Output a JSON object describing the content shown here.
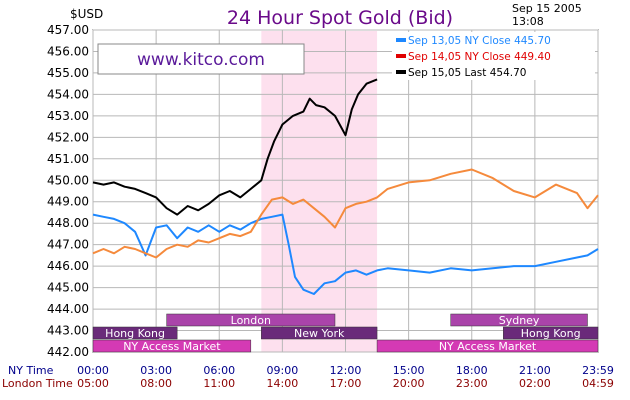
{
  "header": {
    "currency": "$USD",
    "title": "24 Hour Spot Gold (Bid)",
    "date": "Sep 15 2005",
    "time": "13:08",
    "watermark": "www.kitco.com"
  },
  "legend": [
    {
      "label": "Sep 13,05 NY Close 445.70",
      "color": "#1e88ff"
    },
    {
      "label": "Sep 14,05 NY Close 449.40",
      "color": "#e00000"
    },
    {
      "label": "Sep 15,05 Last 454.70",
      "color": "#000000"
    }
  ],
  "row_labels": {
    "ny": "NY Time",
    "london": "London Time"
  },
  "markets": [
    {
      "name": "London",
      "color": "#aa44aa",
      "row": 0,
      "start_ny": 3.5,
      "end_ny": 11.5
    },
    {
      "name": "Sydney",
      "color": "#aa44aa",
      "row": 0,
      "start_ny": 17.0,
      "end_ny": 23.5
    },
    {
      "name": "Hong Kong",
      "color": "#6a2a7a",
      "row": 1,
      "start_ny": 0.0,
      "end_ny": 4.0
    },
    {
      "name": "New York",
      "color": "#6a2a7a",
      "row": 1,
      "start_ny": 8.0,
      "end_ny": 13.5
    },
    {
      "name": "Hong Kong",
      "color": "#6a2a7a",
      "row": 1,
      "start_ny": 19.5,
      "end_ny": 24.0
    },
    {
      "name": "NY Access Market",
      "color": "#d43ab4",
      "row": 2,
      "start_ny": 0.0,
      "end_ny": 7.5
    },
    {
      "name": "NY Access Market",
      "color": "#d43ab4",
      "row": 2,
      "start_ny": 13.5,
      "end_ny": 24.0
    }
  ],
  "chart_data": {
    "type": "line",
    "title": "24 Hour Spot Gold (Bid)",
    "ylabel": "$USD",
    "xlim": [
      0,
      24
    ],
    "ylim": [
      442,
      457
    ],
    "yticks": [
      "457.00",
      "456.00",
      "455.00",
      "454.00",
      "453.00",
      "452.00",
      "451.00",
      "450.00",
      "449.00",
      "448.00",
      "447.00",
      "446.00",
      "445.00",
      "444.00",
      "443.00",
      "442.00"
    ],
    "x_ticks_ny": [
      "00:00",
      "03:00",
      "06:00",
      "09:00",
      "12:00",
      "15:00",
      "18:00",
      "21:00",
      "23:59"
    ],
    "x_ticks_london": [
      "05:00",
      "08:00",
      "11:00",
      "14:00",
      "17:00",
      "20:00",
      "23:00",
      "02:00",
      "04:59"
    ],
    "highlight": {
      "start_ny": 8.0,
      "end_ny": 13.5
    },
    "grid": true,
    "legend_position": "top-right",
    "series": [
      {
        "name": "Sep 13,05 NY Close 445.70",
        "color": "#1e88ff",
        "x": [
          0,
          0.5,
          1,
          1.5,
          2,
          2.5,
          3,
          3.5,
          4,
          4.5,
          5,
          5.5,
          6,
          6.5,
          7,
          7.5,
          8,
          8.5,
          9,
          9.3,
          9.6,
          10,
          10.5,
          11,
          11.5,
          12,
          12.5,
          13,
          13.5,
          14,
          15,
          16,
          17,
          18,
          19,
          20,
          21,
          22,
          23,
          23.5,
          24
        ],
        "y": [
          448.4,
          448.3,
          448.2,
          448.0,
          447.6,
          446.5,
          447.8,
          447.9,
          447.3,
          447.8,
          447.6,
          447.9,
          447.6,
          447.9,
          447.7,
          448.0,
          448.2,
          448.3,
          448.4,
          447.0,
          445.5,
          444.9,
          444.7,
          445.2,
          445.3,
          445.7,
          445.8,
          445.6,
          445.8,
          445.9,
          445.8,
          445.7,
          445.9,
          445.8,
          445.9,
          446.0,
          446.0,
          446.2,
          446.4,
          446.5,
          446.8
        ]
      },
      {
        "name": "Sep 14,05 NY Close 449.40",
        "color": "#f58a3c",
        "x": [
          0,
          0.5,
          1,
          1.5,
          2,
          2.5,
          3,
          3.5,
          4,
          4.5,
          5,
          5.5,
          6,
          6.5,
          7,
          7.5,
          8,
          8.5,
          9,
          9.5,
          10,
          10.5,
          11,
          11.5,
          12,
          12.5,
          13,
          13.5,
          14,
          15,
          16,
          17,
          18,
          19,
          20,
          21,
          22,
          23,
          23.5,
          24
        ],
        "y": [
          446.6,
          446.8,
          446.6,
          446.9,
          446.8,
          446.6,
          446.4,
          446.8,
          447.0,
          446.9,
          447.2,
          447.1,
          447.3,
          447.5,
          447.4,
          447.6,
          448.4,
          449.1,
          449.2,
          448.9,
          449.1,
          448.7,
          448.3,
          447.8,
          448.7,
          448.9,
          449.0,
          449.2,
          449.6,
          449.9,
          450.0,
          450.3,
          450.5,
          450.1,
          449.5,
          449.2,
          449.8,
          449.4,
          448.7,
          449.3
        ]
      },
      {
        "name": "Sep 15,05 Last 454.70",
        "color": "#000000",
        "x": [
          0,
          0.5,
          1,
          1.5,
          2,
          2.5,
          3,
          3.5,
          4,
          4.5,
          5,
          5.5,
          6,
          6.5,
          7,
          7.5,
          8,
          8.3,
          8.6,
          9,
          9.5,
          10,
          10.3,
          10.6,
          11,
          11.5,
          12,
          12.3,
          12.6,
          13,
          13.5
        ],
        "y": [
          449.9,
          449.8,
          449.9,
          449.7,
          449.6,
          449.4,
          449.2,
          448.7,
          448.4,
          448.8,
          448.6,
          448.9,
          449.3,
          449.5,
          449.2,
          449.6,
          450.0,
          451.0,
          451.8,
          452.6,
          453.0,
          453.2,
          453.8,
          453.5,
          453.4,
          453.0,
          452.1,
          453.3,
          454.0,
          454.5,
          454.7
        ]
      }
    ]
  }
}
